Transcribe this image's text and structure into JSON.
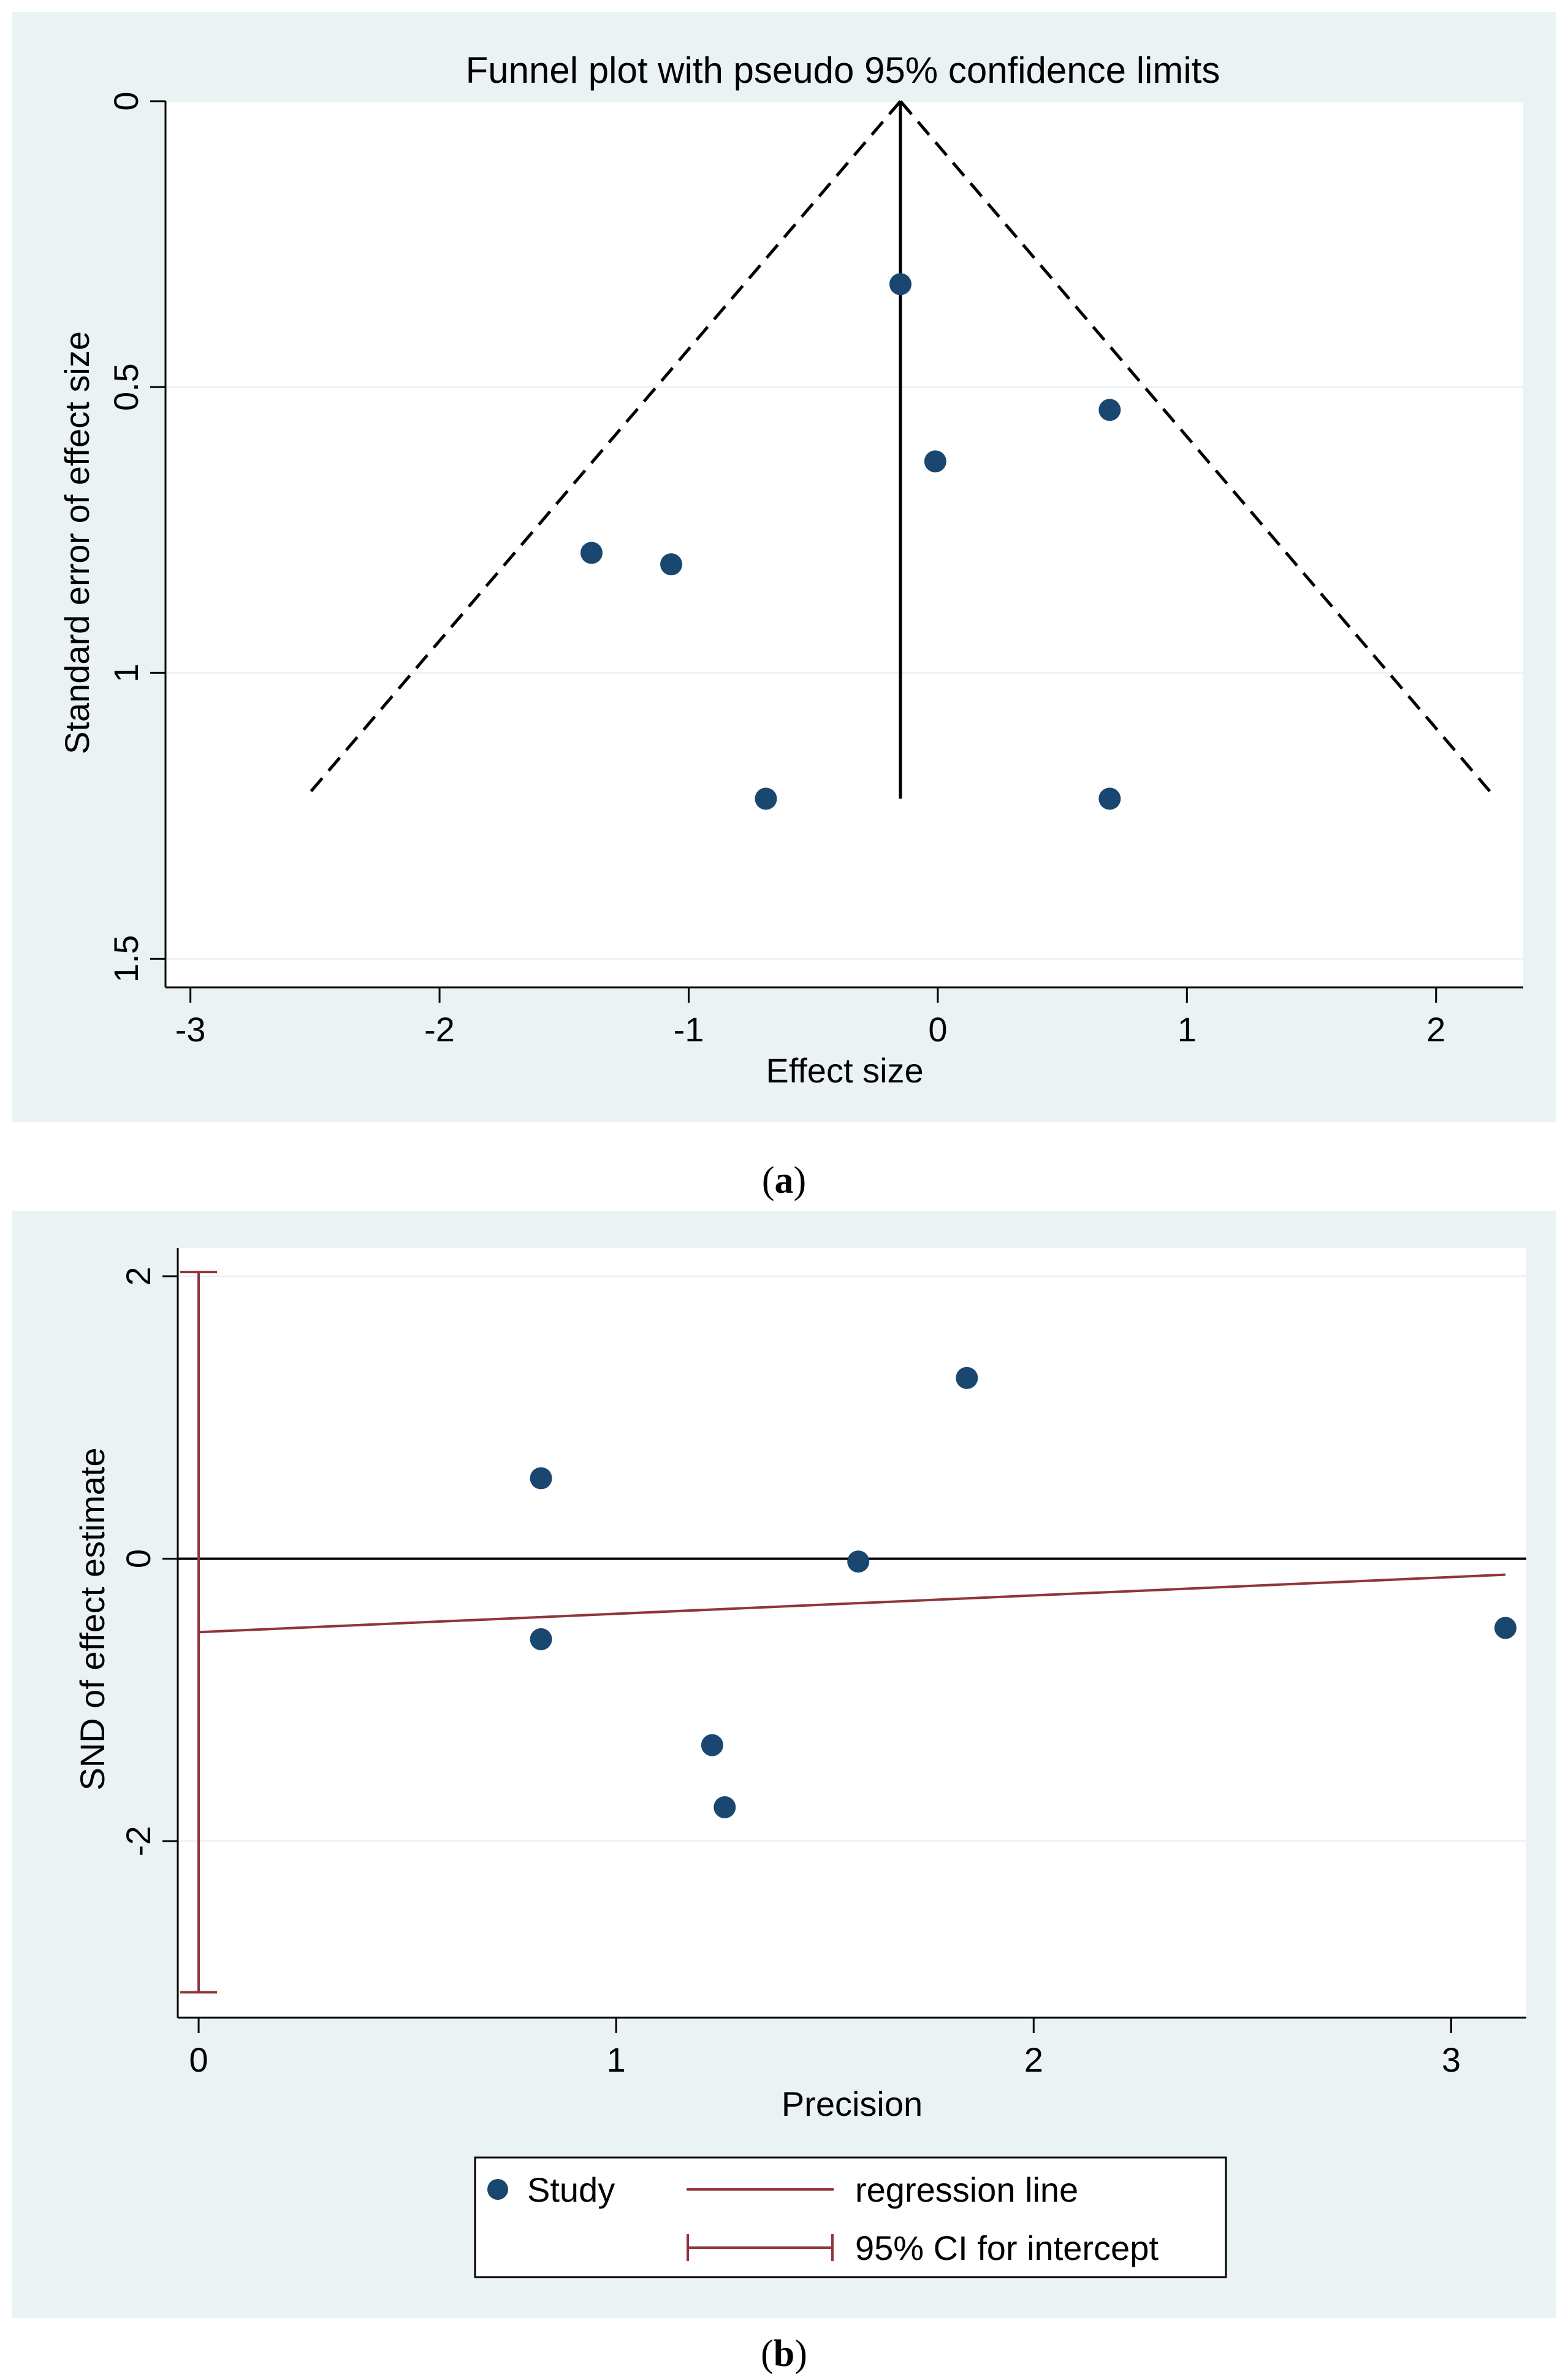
{
  "colors": {
    "panel_bg": "#EAF2F3",
    "plot_bg": "#FFFFFF",
    "grid": "#EAF2F3",
    "marker": "#1A476F",
    "regression": "#90353B",
    "axis": "#000000"
  },
  "chart_data": [
    {
      "type": "scatter",
      "panel": "a",
      "title": "Funnel plot with pseudo 95% confidence limits",
      "xlabel": "Effect size",
      "ylabel": "Standard error of effect size",
      "xlim": [
        -3.1,
        2.35
      ],
      "ylim": [
        0,
        1.55
      ],
      "y_reversed": true,
      "xticks": [
        -3,
        -2,
        -1,
        0,
        1,
        2
      ],
      "xtick_labels": [
        "-3",
        "-2",
        "-1",
        "0",
        "1",
        "2"
      ],
      "yticks": [
        0,
        0.5,
        1,
        1.5
      ],
      "ytick_labels": [
        "0",
        "0.5",
        "1",
        "1.5"
      ],
      "grid": true,
      "pooled_effect": -0.15,
      "max_se": 1.22,
      "points": [
        {
          "x": -0.15,
          "y": 0.32
        },
        {
          "x": 0.69,
          "y": 0.54
        },
        {
          "x": -0.01,
          "y": 0.63
        },
        {
          "x": -1.39,
          "y": 0.79
        },
        {
          "x": -1.07,
          "y": 0.81
        },
        {
          "x": -0.69,
          "y": 1.22
        },
        {
          "x": 0.69,
          "y": 1.22
        }
      ],
      "caption": "a"
    },
    {
      "type": "scatter",
      "panel": "b",
      "title": "",
      "xlabel": "Precision",
      "ylabel": "SND of effect estimate",
      "xlim": [
        -0.05,
        3.18
      ],
      "ylim": [
        -3.25,
        2.2
      ],
      "xticks": [
        0,
        1,
        2,
        3
      ],
      "xtick_labels": [
        "0",
        "1",
        "2",
        "3"
      ],
      "yticks": [
        -2,
        0,
        2
      ],
      "ytick_labels": [
        "-2",
        "0",
        "2"
      ],
      "grid": true,
      "points": [
        {
          "x": 0.82,
          "y": 0.57
        },
        {
          "x": 1.84,
          "y": 1.28
        },
        {
          "x": 1.58,
          "y": -0.02
        },
        {
          "x": 0.82,
          "y": -0.57
        },
        {
          "x": 1.23,
          "y": -1.32
        },
        {
          "x": 1.26,
          "y": -1.76
        },
        {
          "x": 3.13,
          "y": -0.49
        }
      ],
      "regression": {
        "intercept": -0.52,
        "slope": 0.13,
        "x_range": [
          0,
          3.13
        ]
      },
      "ci_intercept": [
        -3.07,
        2.03
      ],
      "legend": {
        "position": "bottom",
        "entries": [
          "Study",
          "regression line",
          "95% CI for intercept"
        ]
      },
      "caption": "b"
    }
  ]
}
